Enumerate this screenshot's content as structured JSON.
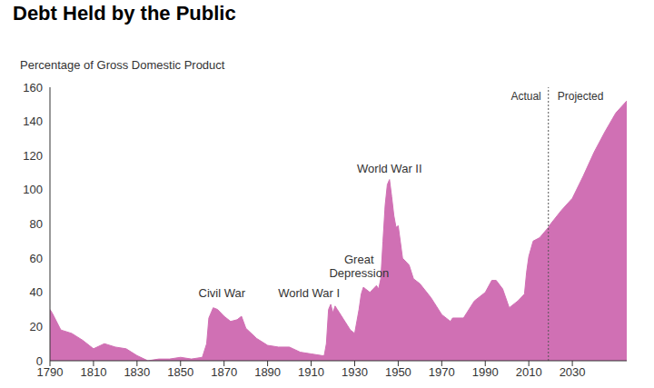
{
  "chart_data": {
    "type": "area",
    "title": "Debt Held by the Public",
    "y_label": "Percentage of Gross Domestic Product",
    "color": "#d070b4",
    "grid": false,
    "x": [
      1790,
      1791,
      1795,
      1800,
      1805,
      1810,
      1815,
      1820,
      1825,
      1830,
      1835,
      1840,
      1845,
      1850,
      1855,
      1860,
      1862,
      1863,
      1865,
      1867,
      1870,
      1873,
      1876,
      1878,
      1880,
      1885,
      1890,
      1895,
      1900,
      1905,
      1910,
      1915,
      1916,
      1917,
      1918,
      1919,
      1920,
      1921,
      1922,
      1925,
      1928,
      1930,
      1932,
      1933,
      1934,
      1935,
      1937,
      1940,
      1941,
      1942,
      1943,
      1944,
      1945,
      1946,
      1947,
      1948,
      1949,
      1950,
      1952,
      1955,
      1957,
      1960,
      1965,
      1970,
      1974,
      1975,
      1980,
      1985,
      1990,
      1993,
      1995,
      1998,
      2001,
      2005,
      2008,
      2009,
      2010,
      2012,
      2015,
      2019,
      2020,
      2025,
      2030,
      2035,
      2040,
      2045,
      2050,
      2055
    ],
    "values": [
      30,
      28,
      18,
      16,
      12,
      7,
      10,
      8,
      7,
      3,
      0,
      1,
      1,
      2,
      1,
      2,
      10,
      25,
      31,
      30,
      26,
      23,
      24,
      26,
      19,
      13,
      9,
      8,
      8,
      5,
      4,
      3,
      3,
      10,
      30,
      33,
      28,
      32,
      30,
      24,
      18,
      16,
      30,
      39,
      43,
      42,
      40,
      44,
      42,
      48,
      70,
      91,
      103,
      106,
      96,
      85,
      78,
      79,
      60,
      56,
      48,
      45,
      37,
      27,
      23,
      25,
      25,
      35,
      40,
      47,
      47,
      42,
      31,
      35,
      39,
      52,
      61,
      70,
      72,
      78,
      80,
      88,
      95,
      108,
      122,
      134,
      145,
      152
    ],
    "xlim": [
      1790,
      2055
    ],
    "xticks": [
      1790,
      1810,
      1830,
      1850,
      1870,
      1890,
      1910,
      1930,
      1950,
      1970,
      1990,
      2010,
      2030
    ],
    "ylim": [
      0,
      160
    ],
    "yticks": [
      0,
      20,
      40,
      60,
      80,
      100,
      120,
      140,
      160
    ],
    "projection_start": 2019,
    "actual_label": "Actual",
    "projected_label": "Projected",
    "annotations": [
      {
        "text": "Civil War",
        "x": 1869,
        "y": 35
      },
      {
        "text": "World War I",
        "x": 1909,
        "y": 35
      },
      {
        "text": "Great Depression",
        "x": 1932,
        "y": 47
      },
      {
        "text": "World War II",
        "x": 1946,
        "y": 108
      }
    ]
  }
}
